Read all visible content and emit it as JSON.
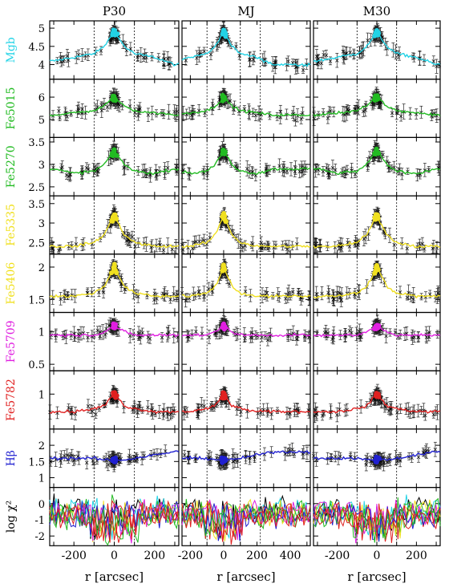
{
  "figure": {
    "columns": [
      "P30",
      "MJ",
      "M30"
    ],
    "xlabel": "r [arcsec]",
    "rows": [
      {
        "label": "Mgb",
        "color": "#22d3e6",
        "yticks": [
          4,
          4.5,
          5
        ],
        "ylim": [
          3.6,
          5.2
        ]
      },
      {
        "label": "Fe5015",
        "color": "#22bb22",
        "yticks": [
          5,
          6
        ],
        "ylim": [
          4.2,
          6.8
        ]
      },
      {
        "label": "Fe5270",
        "color": "#22bb22",
        "yticks": [
          2.5,
          3,
          3.5
        ],
        "ylim": [
          2.3,
          3.6
        ]
      },
      {
        "label": "Fe5335",
        "color": "#f0e020",
        "yticks": [
          2.5,
          3,
          3.5
        ],
        "ylim": [
          2.2,
          3.7
        ]
      },
      {
        "label": "Fe5406",
        "color": "#f0e020",
        "yticks": [
          1.5,
          2
        ],
        "ylim": [
          1.3,
          2.2
        ]
      },
      {
        "label": "Fe5709",
        "color": "#e020e0",
        "yticks": [
          0.5,
          1
        ],
        "ylim": [
          0.4,
          1.3
        ]
      },
      {
        "label": "Fe5782",
        "color": "#e02020",
        "yticks": [
          1
        ],
        "ylim": [
          0.4,
          1.4
        ]
      },
      {
        "label": "Hβ",
        "color": "#2020d0",
        "yticks": [
          1,
          1.5,
          2
        ],
        "ylim": [
          0.7,
          2.5
        ]
      },
      {
        "label": "log χ²",
        "color": "#000000",
        "yticks": [
          -2,
          -1,
          0
        ],
        "ylim": [
          -2.6,
          1.0
        ]
      }
    ],
    "xtick_labels": [
      [
        "-200",
        "0",
        "200"
      ],
      [
        "-200",
        "0",
        "200",
        "400"
      ],
      [
        "-200",
        "0",
        "200"
      ]
    ]
  },
  "chart_data": {
    "type": "scatter",
    "title": "",
    "panels_grid": "9 rows x 3 columns",
    "columns": [
      "P30",
      "MJ",
      "M30"
    ],
    "xlabel": "r [arcsec]",
    "xlim": [
      [
        -320,
        320
      ],
      [
        -250,
        520
      ],
      [
        -320,
        320
      ]
    ],
    "vertical_dashed_lines_at": [
      [
        -100,
        100
      ],
      [
        -100,
        100,
        220
      ],
      [
        -100,
        100
      ]
    ],
    "rows": [
      "Mgb",
      "Fe5015",
      "Fe5270",
      "Fe5335",
      "Fe5406",
      "Fe5709",
      "Fe5782",
      "Hβ",
      "log χ²"
    ],
    "series": [
      {
        "name": "Mgb",
        "profile": {
          "r": [
            -300,
            -200,
            -100,
            -50,
            0,
            50,
            100,
            200,
            300
          ],
          "index": [
            4.1,
            4.2,
            4.3,
            4.5,
            4.9,
            4.5,
            4.3,
            4.2,
            4.0
          ]
        }
      },
      {
        "name": "Fe5015",
        "profile": {
          "r": [
            -300,
            -200,
            -100,
            -50,
            0,
            50,
            100,
            200,
            300
          ],
          "index": [
            5.2,
            5.3,
            5.4,
            5.6,
            6.0,
            5.6,
            5.4,
            5.3,
            5.2
          ]
        }
      },
      {
        "name": "Fe5270",
        "profile": {
          "r": [
            -300,
            -200,
            -100,
            -50,
            0,
            50,
            100,
            200,
            300
          ],
          "index": [
            2.9,
            2.8,
            2.85,
            3.0,
            3.3,
            3.0,
            2.85,
            2.8,
            2.9
          ]
        }
      },
      {
        "name": "Fe5335",
        "profile": {
          "r": [
            -300,
            -200,
            -100,
            -50,
            0,
            50,
            100,
            200,
            300
          ],
          "index": [
            2.4,
            2.4,
            2.5,
            2.7,
            3.2,
            2.7,
            2.5,
            2.4,
            2.4
          ]
        }
      },
      {
        "name": "Fe5406",
        "profile": {
          "r": [
            -300,
            -200,
            -100,
            -50,
            0,
            50,
            100,
            200,
            300
          ],
          "index": [
            1.55,
            1.55,
            1.6,
            1.7,
            2.0,
            1.7,
            1.6,
            1.55,
            1.55
          ]
        }
      },
      {
        "name": "Fe5709",
        "profile": {
          "r": [
            -300,
            -200,
            -100,
            -50,
            0,
            50,
            100,
            200,
            300
          ],
          "index": [
            0.95,
            0.95,
            0.95,
            1.0,
            1.1,
            1.0,
            0.95,
            0.95,
            0.95
          ]
        }
      },
      {
        "name": "Fe5782",
        "profile": {
          "r": [
            -300,
            -200,
            -100,
            -50,
            0,
            50,
            100,
            200,
            300
          ],
          "index": [
            0.7,
            0.7,
            0.75,
            0.8,
            1.0,
            0.8,
            0.75,
            0.7,
            0.7
          ]
        }
      },
      {
        "name": "Hβ",
        "profile": {
          "r": [
            -300,
            -200,
            -100,
            -50,
            0,
            50,
            100,
            200,
            300
          ],
          "index": [
            1.6,
            1.6,
            1.6,
            1.55,
            1.55,
            1.55,
            1.6,
            1.7,
            1.8
          ]
        }
      }
    ],
    "grid": false
  }
}
